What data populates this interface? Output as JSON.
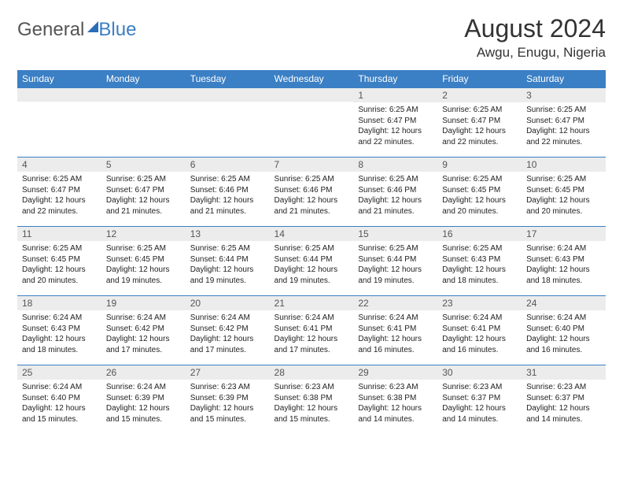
{
  "logo": {
    "text1": "General",
    "text2": "Blue"
  },
  "title": "August 2024",
  "location": "Awgu, Enugu, Nigeria",
  "header_bg": "#3b7fc4",
  "days_of_week": [
    "Sunday",
    "Monday",
    "Tuesday",
    "Wednesday",
    "Thursday",
    "Friday",
    "Saturday"
  ],
  "weeks": [
    [
      null,
      null,
      null,
      null,
      {
        "n": "1",
        "sr": "6:25 AM",
        "ss": "6:47 PM",
        "dl": "12 hours and 22 minutes."
      },
      {
        "n": "2",
        "sr": "6:25 AM",
        "ss": "6:47 PM",
        "dl": "12 hours and 22 minutes."
      },
      {
        "n": "3",
        "sr": "6:25 AM",
        "ss": "6:47 PM",
        "dl": "12 hours and 22 minutes."
      }
    ],
    [
      {
        "n": "4",
        "sr": "6:25 AM",
        "ss": "6:47 PM",
        "dl": "12 hours and 22 minutes."
      },
      {
        "n": "5",
        "sr": "6:25 AM",
        "ss": "6:47 PM",
        "dl": "12 hours and 21 minutes."
      },
      {
        "n": "6",
        "sr": "6:25 AM",
        "ss": "6:46 PM",
        "dl": "12 hours and 21 minutes."
      },
      {
        "n": "7",
        "sr": "6:25 AM",
        "ss": "6:46 PM",
        "dl": "12 hours and 21 minutes."
      },
      {
        "n": "8",
        "sr": "6:25 AM",
        "ss": "6:46 PM",
        "dl": "12 hours and 21 minutes."
      },
      {
        "n": "9",
        "sr": "6:25 AM",
        "ss": "6:45 PM",
        "dl": "12 hours and 20 minutes."
      },
      {
        "n": "10",
        "sr": "6:25 AM",
        "ss": "6:45 PM",
        "dl": "12 hours and 20 minutes."
      }
    ],
    [
      {
        "n": "11",
        "sr": "6:25 AM",
        "ss": "6:45 PM",
        "dl": "12 hours and 20 minutes."
      },
      {
        "n": "12",
        "sr": "6:25 AM",
        "ss": "6:45 PM",
        "dl": "12 hours and 19 minutes."
      },
      {
        "n": "13",
        "sr": "6:25 AM",
        "ss": "6:44 PM",
        "dl": "12 hours and 19 minutes."
      },
      {
        "n": "14",
        "sr": "6:25 AM",
        "ss": "6:44 PM",
        "dl": "12 hours and 19 minutes."
      },
      {
        "n": "15",
        "sr": "6:25 AM",
        "ss": "6:44 PM",
        "dl": "12 hours and 19 minutes."
      },
      {
        "n": "16",
        "sr": "6:25 AM",
        "ss": "6:43 PM",
        "dl": "12 hours and 18 minutes."
      },
      {
        "n": "17",
        "sr": "6:24 AM",
        "ss": "6:43 PM",
        "dl": "12 hours and 18 minutes."
      }
    ],
    [
      {
        "n": "18",
        "sr": "6:24 AM",
        "ss": "6:43 PM",
        "dl": "12 hours and 18 minutes."
      },
      {
        "n": "19",
        "sr": "6:24 AM",
        "ss": "6:42 PM",
        "dl": "12 hours and 17 minutes."
      },
      {
        "n": "20",
        "sr": "6:24 AM",
        "ss": "6:42 PM",
        "dl": "12 hours and 17 minutes."
      },
      {
        "n": "21",
        "sr": "6:24 AM",
        "ss": "6:41 PM",
        "dl": "12 hours and 17 minutes."
      },
      {
        "n": "22",
        "sr": "6:24 AM",
        "ss": "6:41 PM",
        "dl": "12 hours and 16 minutes."
      },
      {
        "n": "23",
        "sr": "6:24 AM",
        "ss": "6:41 PM",
        "dl": "12 hours and 16 minutes."
      },
      {
        "n": "24",
        "sr": "6:24 AM",
        "ss": "6:40 PM",
        "dl": "12 hours and 16 minutes."
      }
    ],
    [
      {
        "n": "25",
        "sr": "6:24 AM",
        "ss": "6:40 PM",
        "dl": "12 hours and 15 minutes."
      },
      {
        "n": "26",
        "sr": "6:24 AM",
        "ss": "6:39 PM",
        "dl": "12 hours and 15 minutes."
      },
      {
        "n": "27",
        "sr": "6:23 AM",
        "ss": "6:39 PM",
        "dl": "12 hours and 15 minutes."
      },
      {
        "n": "28",
        "sr": "6:23 AM",
        "ss": "6:38 PM",
        "dl": "12 hours and 15 minutes."
      },
      {
        "n": "29",
        "sr": "6:23 AM",
        "ss": "6:38 PM",
        "dl": "12 hours and 14 minutes."
      },
      {
        "n": "30",
        "sr": "6:23 AM",
        "ss": "6:37 PM",
        "dl": "12 hours and 14 minutes."
      },
      {
        "n": "31",
        "sr": "6:23 AM",
        "ss": "6:37 PM",
        "dl": "12 hours and 14 minutes."
      }
    ]
  ],
  "labels": {
    "sunrise": "Sunrise:",
    "sunset": "Sunset:",
    "daylight": "Daylight:"
  }
}
